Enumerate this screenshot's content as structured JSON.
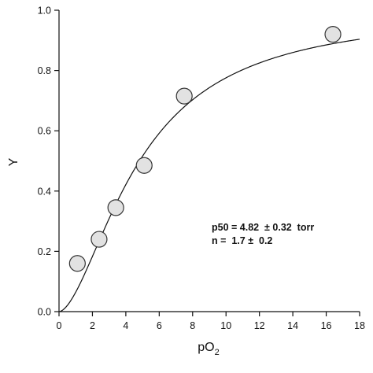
{
  "chart_data": {
    "type": "scatter",
    "xlabel_main": "pO",
    "xlabel_sub": "2",
    "ylabel": "Y",
    "xlim": [
      0,
      18
    ],
    "ylim": [
      0,
      1.0
    ],
    "x_ticks": [
      "0",
      "2",
      "4",
      "6",
      "8",
      "10",
      "12",
      "14",
      "16",
      "18"
    ],
    "y_ticks": [
      "0.0",
      "0.2",
      "0.4",
      "0.6",
      "0.8",
      "1.0"
    ],
    "grid": false,
    "points": [
      {
        "x": 1.1,
        "y": 0.16
      },
      {
        "x": 2.4,
        "y": 0.24
      },
      {
        "x": 3.4,
        "y": 0.345
      },
      {
        "x": 5.1,
        "y": 0.485
      },
      {
        "x": 7.5,
        "y": 0.715
      },
      {
        "x": 16.4,
        "y": 0.92
      }
    ],
    "fit": {
      "model": "hill",
      "p50": 4.82,
      "n": 1.7
    },
    "annotations": [
      "p50 = 4.82  ± 0.32  torr",
      "n =  1.7 ±  0.2"
    ],
    "colors": {
      "marker_fill": "#e2e2e2",
      "marker_stroke": "#333333",
      "line": "#111111"
    }
  }
}
